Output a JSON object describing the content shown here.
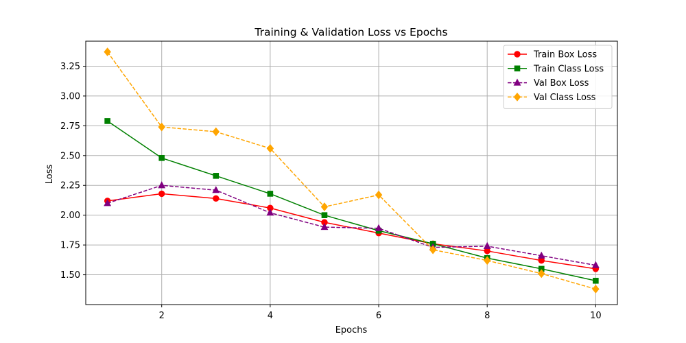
{
  "chart_data": {
    "type": "line",
    "title": "Training & Validation Loss vs Epochs",
    "xlabel": "Epochs",
    "ylabel": "Loss",
    "xlim": [
      0.6,
      10.4
    ],
    "ylim": [
      1.25,
      3.46
    ],
    "xticks": [
      2,
      4,
      6,
      8,
      10
    ],
    "yticks": [
      1.5,
      1.75,
      2.0,
      2.25,
      2.5,
      2.75,
      3.0,
      3.25
    ],
    "ytick_labels": [
      "1.50",
      "1.75",
      "2.00",
      "2.25",
      "2.50",
      "2.75",
      "3.00",
      "3.25"
    ],
    "grid": true,
    "legend_position": "top-right",
    "x": [
      1,
      2,
      3,
      4,
      5,
      6,
      7,
      8,
      9,
      10
    ],
    "series": [
      {
        "name": "Train Box Loss",
        "color": "#ff0000",
        "marker": "circle",
        "dashed": false,
        "values": [
          2.12,
          2.18,
          2.14,
          2.06,
          1.94,
          1.85,
          1.76,
          1.7,
          1.62,
          1.55
        ]
      },
      {
        "name": "Train Class Loss",
        "color": "#008000",
        "marker": "square",
        "dashed": false,
        "values": [
          2.79,
          2.48,
          2.33,
          2.18,
          2.0,
          1.87,
          1.76,
          1.64,
          1.55,
          1.45
        ]
      },
      {
        "name": "Val Box Loss",
        "color": "#800080",
        "marker": "triangle",
        "dashed": true,
        "values": [
          2.1,
          2.25,
          2.21,
          2.02,
          1.9,
          1.89,
          1.73,
          1.74,
          1.66,
          1.58
        ]
      },
      {
        "name": "Val Class Loss",
        "color": "#ffa500",
        "marker": "diamond",
        "dashed": true,
        "values": [
          3.37,
          2.74,
          2.7,
          2.56,
          2.07,
          2.17,
          1.71,
          1.62,
          1.51,
          1.38
        ]
      }
    ]
  }
}
